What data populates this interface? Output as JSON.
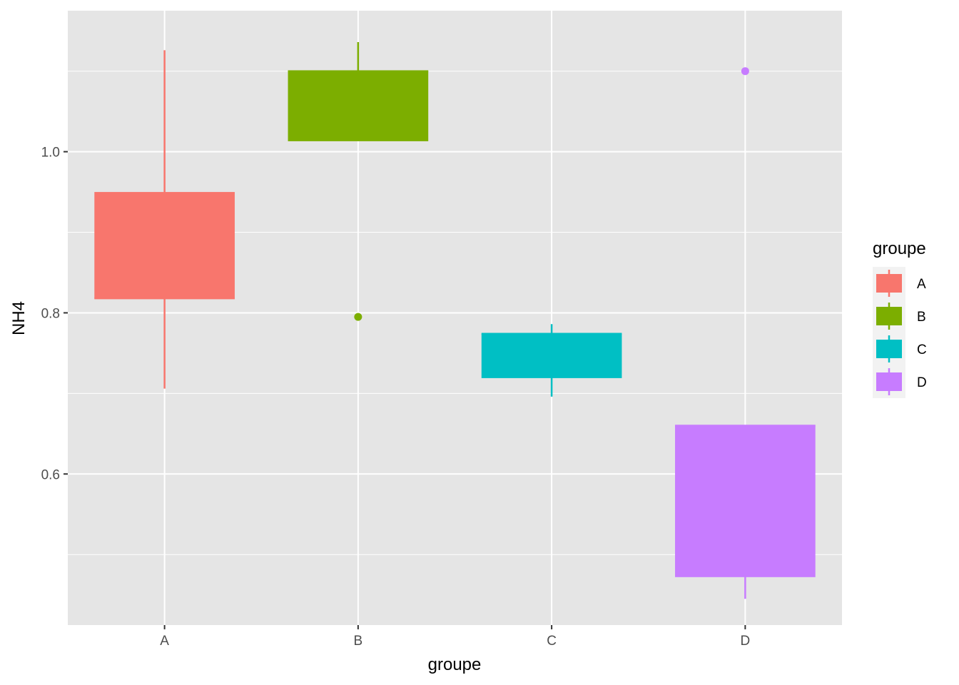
{
  "chart_data": {
    "type": "boxplot",
    "title": "",
    "xlabel": "groupe",
    "ylabel": "NH4",
    "categories": [
      "A",
      "B",
      "C",
      "D"
    ],
    "ylim": [
      0.4125,
      1.175
    ],
    "y_ticks": [
      0.6,
      0.8,
      1.0
    ],
    "y_tick_labels": [
      "0.6",
      "0.8",
      "1.0"
    ],
    "grid": true,
    "legend": {
      "title": "groupe",
      "position": "right",
      "entries": [
        "A",
        "B",
        "C",
        "D"
      ]
    },
    "colors": {
      "A": "#F8766D",
      "B": "#7CAE00",
      "C": "#00BFC4",
      "D": "#C77CFF"
    },
    "series": [
      {
        "name": "A",
        "whisker_low": 0.706,
        "q1": 0.818,
        "median": 0.818,
        "q3": 0.95,
        "whisker_high": 1.126,
        "outliers": []
      },
      {
        "name": "B",
        "whisker_low": 1.013,
        "q1": 1.013,
        "median": 1.1,
        "q3": 1.1,
        "whisker_high": 1.136,
        "outliers": [
          0.795
        ]
      },
      {
        "name": "C",
        "whisker_low": 0.696,
        "q1": 0.719,
        "median": 0.774,
        "q3": 0.774,
        "whisker_high": 0.786,
        "outliers": []
      },
      {
        "name": "D",
        "whisker_low": 0.445,
        "q1": 0.472,
        "median": 0.66,
        "q3": 0.66,
        "whisker_high": 0.66,
        "outliers": [
          1.1
        ]
      }
    ]
  }
}
